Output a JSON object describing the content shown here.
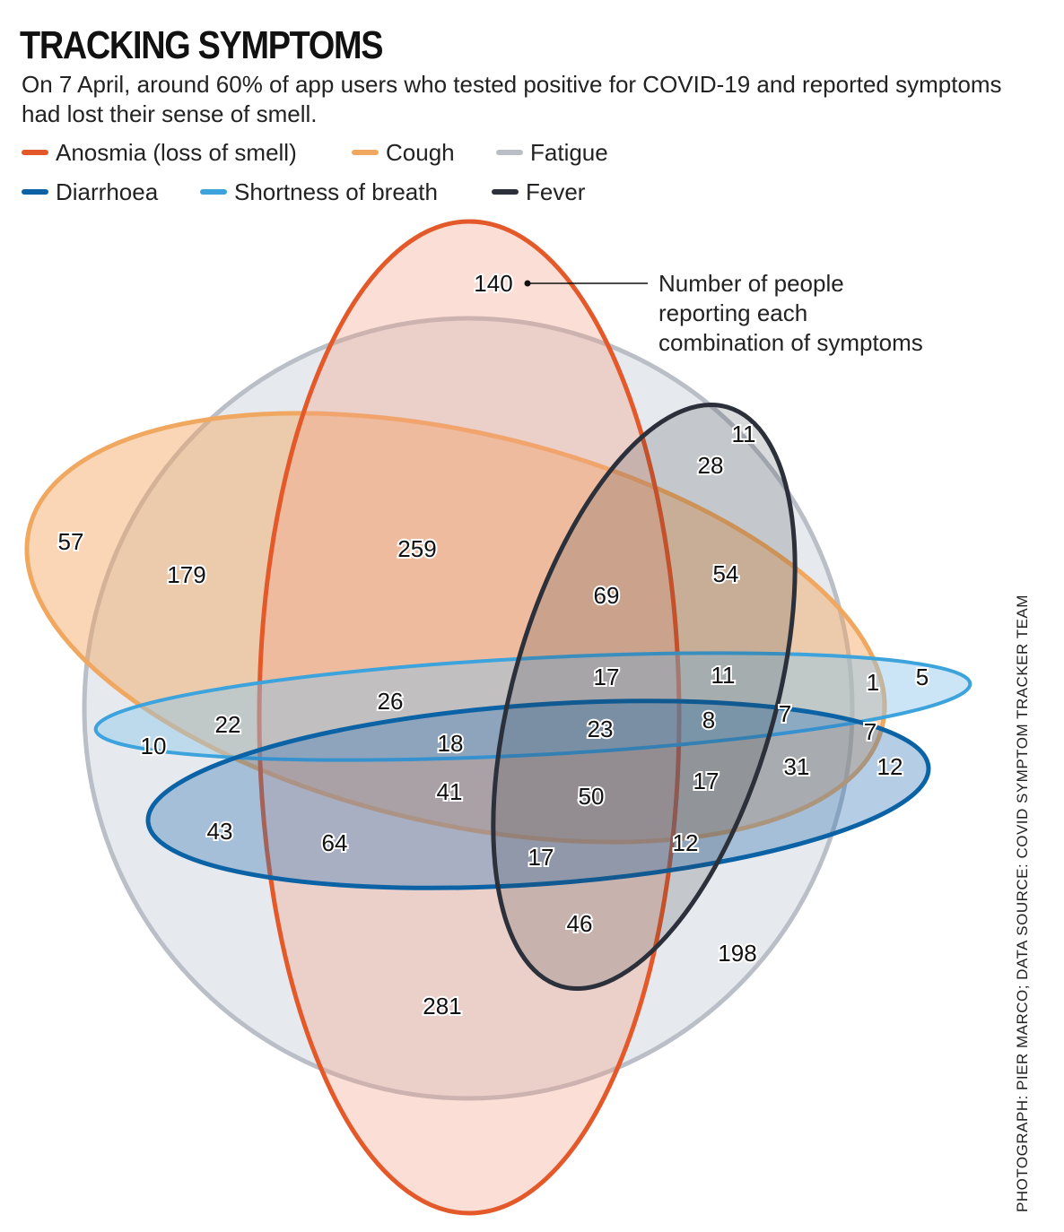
{
  "title": "TRACKING SYMPTOMS",
  "subtitle": "On 7 April, around 60% of app users who tested positive for COVID-19 and reported symptoms had lost their sense of smell.",
  "legend": [
    {
      "label": "Anosmia (loss of smell)",
      "color": "#e4592a"
    },
    {
      "label": "Cough",
      "color": "#f0a860"
    },
    {
      "label": "Fatigue",
      "color": "#b9bec7"
    },
    {
      "label": "Diarrhoea",
      "color": "#0b63a5"
    },
    {
      "label": "Shortness of breath",
      "color": "#3ca3dc"
    },
    {
      "label": "Fever",
      "color": "#2b303a"
    }
  ],
  "callout": {
    "line1": "Number of people",
    "line2": "reporting each",
    "line3": "combination of symptoms"
  },
  "credit": "PHOTOGRAPH: PIER MARCO; DATA SOURCE: COVID SYMPTOM TRACKER TEAM",
  "counts": [
    "140",
    "11",
    "28",
    "57",
    "179",
    "259",
    "54",
    "69",
    "17",
    "11",
    "1",
    "5",
    "26",
    "22",
    "7",
    "10",
    "18",
    "23",
    "8",
    "7",
    "31",
    "12",
    "41",
    "50",
    "17",
    "43",
    "64",
    "17",
    "12",
    "46",
    "198",
    "281"
  ]
}
